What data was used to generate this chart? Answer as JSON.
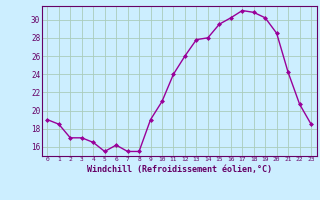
{
  "x": [
    0,
    1,
    2,
    3,
    4,
    5,
    6,
    7,
    8,
    9,
    10,
    11,
    12,
    13,
    14,
    15,
    16,
    17,
    18,
    19,
    20,
    21,
    22,
    23
  ],
  "y": [
    19.0,
    18.5,
    17.0,
    17.0,
    16.5,
    15.5,
    16.2,
    15.5,
    15.5,
    19.0,
    21.0,
    24.0,
    26.0,
    27.8,
    28.0,
    29.5,
    30.2,
    31.0,
    30.8,
    30.2,
    28.5,
    24.2,
    20.7,
    18.5
  ],
  "line_color": "#990099",
  "marker": "D",
  "marker_size": 2,
  "bg_color": "#cceeff",
  "grid_color": "#aaccbb",
  "xlabel": "Windchill (Refroidissement éolien,°C)",
  "xlabel_color": "#660066",
  "tick_color": "#660066",
  "ylim": [
    15,
    31.5
  ],
  "yticks": [
    16,
    18,
    20,
    22,
    24,
    26,
    28,
    30
  ],
  "xlim": [
    -0.5,
    23.5
  ],
  "font_family": "monospace"
}
